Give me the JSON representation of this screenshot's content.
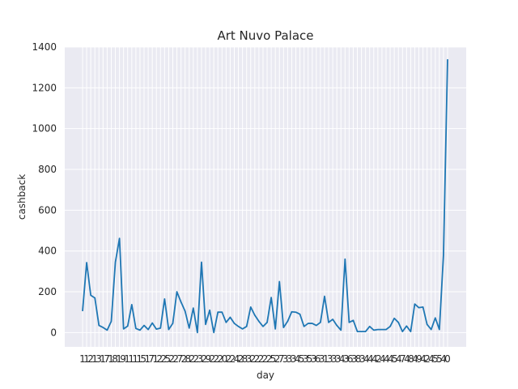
{
  "chart_data": {
    "type": "line",
    "title": "Art Nuvo Palace",
    "xlabel": "day",
    "ylabel": "cashback",
    "ylim": [
      -70,
      1400
    ],
    "yticks": [
      0,
      200,
      400,
      600,
      800,
      1000,
      1200,
      1400
    ],
    "grid": true,
    "legend": "none",
    "colors": {
      "line": "#1f77b4",
      "background": "#eaeaf2",
      "grid": "#ffffff"
    },
    "x_tick_labels": [
      "1",
      "1",
      "2",
      "1",
      "3",
      "1",
      "7",
      "1",
      "8",
      "1",
      "9",
      "1",
      "1",
      "1",
      "1",
      "5",
      "1",
      "7",
      "1",
      "2",
      "2",
      "5",
      "2",
      "2",
      "7",
      "2",
      "8",
      "2",
      "2",
      "3",
      "2",
      "9",
      "2",
      "2",
      "2",
      "0",
      "2",
      "2",
      "4",
      "2",
      "8",
      "3",
      "2",
      "2",
      "2",
      "2",
      "2",
      "5",
      "2",
      "7",
      "3",
      "3",
      "3",
      "4",
      "5",
      "3",
      "5",
      "3",
      "6",
      "3",
      "1",
      "3",
      "3",
      "3",
      "4",
      "3",
      "6",
      "3",
      "8",
      "3",
      "4",
      "4",
      "4",
      "2",
      "4",
      "4",
      "4",
      "5",
      "4",
      "7",
      "4",
      "8",
      "4",
      "9",
      "4",
      "2",
      "4",
      "5",
      "5",
      "4",
      "0"
    ],
    "series": [
      {
        "values": [
          105,
          343,
          183,
          170,
          35,
          25,
          12,
          55,
          345,
          462,
          18,
          32,
          137,
          20,
          12,
          35,
          15,
          47,
          17,
          22,
          165,
          15,
          45,
          200,
          150,
          105,
          22,
          120,
          0,
          345,
          40,
          110,
          0,
          100,
          100,
          50,
          75,
          45,
          30,
          18,
          30,
          125,
          85,
          55,
          30,
          50,
          172,
          18,
          250,
          25,
          55,
          102,
          100,
          90,
          30,
          45,
          45,
          35,
          50,
          178,
          50,
          65,
          35,
          12,
          360,
          50,
          60,
          5,
          5,
          5,
          30,
          12,
          15,
          15,
          15,
          30,
          70,
          50,
          5,
          32,
          5,
          140,
          122,
          125,
          40,
          15,
          72,
          15,
          380,
          1340
        ]
      }
    ]
  }
}
